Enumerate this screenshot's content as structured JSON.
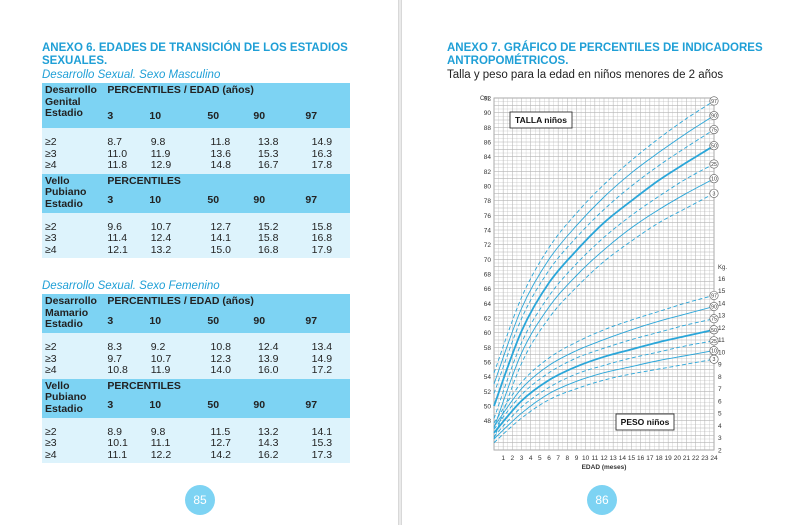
{
  "left": {
    "title": "ANEXO 6. EDADES DE TRANSICIÓN DE LOS ESTADIOS SEXUALES.",
    "subtitle_male": "Desarrollo Sexual. Sexo Masculino",
    "subtitle_female": "Desarrollo Sexual. Sexo Femenino",
    "page_number": "85",
    "male": {
      "genital": {
        "label": [
          "Desarrollo",
          "Genital",
          "Estadio"
        ],
        "header": "PERCENTILES / EDAD (años)",
        "cols": [
          "3",
          "10",
          "50",
          "90",
          "97"
        ],
        "rows": [
          {
            "stage": "≥2",
            "v": [
              "8.7",
              "9.8",
              "11.8",
              "13.8",
              "14.9"
            ]
          },
          {
            "stage": "≥3",
            "v": [
              "11.0",
              "11.9",
              "13.6",
              "15.3",
              "16.3"
            ]
          },
          {
            "stage": "≥4",
            "v": [
              "11.8",
              "12.9",
              "14.8",
              "16.7",
              "17.8"
            ]
          }
        ]
      },
      "pubic": {
        "label": [
          "Vello",
          "Pubiano",
          "Estadio"
        ],
        "header": "PERCENTILES",
        "cols": [
          "3",
          "10",
          "50",
          "90",
          "97"
        ],
        "rows": [
          {
            "stage": "≥2",
            "v": [
              "9.6",
              "10.7",
              "12.7",
              "15.2",
              "15.8"
            ]
          },
          {
            "stage": "≥3",
            "v": [
              "11.4",
              "12.4",
              "14.1",
              "15.8",
              "16.8"
            ]
          },
          {
            "stage": "≥4",
            "v": [
              "12.1",
              "13.2",
              "15.0",
              "16.8",
              "17.9"
            ]
          }
        ]
      }
    },
    "female": {
      "mammary": {
        "label": [
          "Desarrollo",
          "Mamario",
          "Estadio"
        ],
        "header": "PERCENTILES / EDAD (años)",
        "cols": [
          "3",
          "10",
          "50",
          "90",
          "97"
        ],
        "rows": [
          {
            "stage": "≥2",
            "v": [
              "8.3",
              "9.2",
              "10.8",
              "12.4",
              "13.4"
            ]
          },
          {
            "stage": "≥3",
            "v": [
              "9.7",
              "10.7",
              "12.3",
              "13.9",
              "14.9"
            ]
          },
          {
            "stage": "≥4",
            "v": [
              "10.8",
              "11.9",
              "14.0",
              "16.0",
              "17.2"
            ]
          }
        ]
      },
      "pubic": {
        "label": [
          "Vello",
          "Pubiano",
          "Estadio"
        ],
        "header": "PERCENTILES",
        "cols": [
          "3",
          "10",
          "50",
          "90",
          "97"
        ],
        "rows": [
          {
            "stage": "≥2",
            "v": [
              "8.9",
              "9.8",
              "11.5",
              "13.2",
              "14.1"
            ]
          },
          {
            "stage": "≥3",
            "v": [
              "10.1",
              "11.1",
              "12.7",
              "14.3",
              "15.3"
            ]
          },
          {
            "stage": "≥4",
            "v": [
              "11.1",
              "12.2",
              "14.2",
              "16.2",
              "17.3"
            ]
          }
        ]
      }
    }
  },
  "right": {
    "title": "ANEXO 7. GRÁFICO DE PERCENTILES DE INDICADORES ANTROPOMÉTRICOS.",
    "subtitle": "Talla  y peso para la edad en niños menores de 2 años",
    "page_number": "86"
  },
  "chart_data": {
    "type": "line",
    "xlabel": "EDAD (meses)",
    "x_ticks": [
      1,
      2,
      3,
      4,
      5,
      6,
      7,
      8,
      9,
      10,
      11,
      12,
      13,
      14,
      15,
      16,
      17,
      18,
      19,
      20,
      21,
      22,
      23,
      24
    ],
    "xlim": [
      0,
      24
    ],
    "colors": {
      "line": "#2aa6d9",
      "grid": "#b5b5b5",
      "label_bg": "#ffffff"
    },
    "height": {
      "label": "TALLA niños",
      "unit": "Cm.",
      "ylim": [
        46,
        92
      ],
      "y_ticks": [
        48,
        50,
        52,
        54,
        56,
        58,
        60,
        62,
        64,
        66,
        68,
        70,
        72,
        74,
        76,
        78,
        80,
        82,
        84,
        86,
        88,
        90,
        92
      ],
      "series": [
        {
          "percentile": "3",
          "style": "dash",
          "values": [
            [
              0,
              45.5
            ],
            [
              3,
              55.8
            ],
            [
              6,
              62.0
            ],
            [
              9,
              66.2
            ],
            [
              12,
              69.7
            ],
            [
              15,
              72.5
            ],
            [
              18,
              75.0
            ],
            [
              21,
              77.0
            ],
            [
              24,
              79.0
            ]
          ]
        },
        {
          "percentile": "10",
          "style": "solid",
          "values": [
            [
              0,
              47.0
            ],
            [
              3,
              57.2
            ],
            [
              6,
              63.5
            ],
            [
              9,
              67.8
            ],
            [
              12,
              71.3
            ],
            [
              15,
              74.3
            ],
            [
              18,
              76.8
            ],
            [
              21,
              79.0
            ],
            [
              24,
              81.0
            ]
          ]
        },
        {
          "percentile": "25",
          "style": "dash",
          "values": [
            [
              0,
              48.3
            ],
            [
              3,
              58.6
            ],
            [
              6,
              65.0
            ],
            [
              9,
              69.4
            ],
            [
              12,
              73.0
            ],
            [
              15,
              76.0
            ],
            [
              18,
              78.6
            ],
            [
              21,
              81.0
            ],
            [
              24,
              83.0
            ]
          ]
        },
        {
          "percentile": "50",
          "style": "bold",
          "values": [
            [
              0,
              50.0
            ],
            [
              3,
              60.2
            ],
            [
              6,
              66.8
            ],
            [
              9,
              71.2
            ],
            [
              12,
              75.0
            ],
            [
              15,
              78.0
            ],
            [
              18,
              80.8
            ],
            [
              21,
              83.2
            ],
            [
              24,
              85.5
            ]
          ]
        },
        {
          "percentile": "75",
          "style": "dash",
          "values": [
            [
              0,
              51.7
            ],
            [
              3,
              61.9
            ],
            [
              6,
              68.5
            ],
            [
              9,
              73.0
            ],
            [
              12,
              76.8
            ],
            [
              15,
              80.0
            ],
            [
              18,
              82.8
            ],
            [
              21,
              85.3
            ],
            [
              24,
              87.7
            ]
          ]
        },
        {
          "percentile": "90",
          "style": "solid",
          "values": [
            [
              0,
              53.0
            ],
            [
              3,
              63.3
            ],
            [
              6,
              70.0
            ],
            [
              9,
              74.6
            ],
            [
              12,
              78.5
            ],
            [
              15,
              81.8
            ],
            [
              18,
              84.6
            ],
            [
              21,
              87.2
            ],
            [
              24,
              89.6
            ]
          ]
        },
        {
          "percentile": "97",
          "style": "dash",
          "values": [
            [
              0,
              54.5
            ],
            [
              3,
              64.8
            ],
            [
              6,
              71.6
            ],
            [
              9,
              76.3
            ],
            [
              12,
              80.2
            ],
            [
              15,
              83.5
            ],
            [
              18,
              86.5
            ],
            [
              21,
              89.2
            ],
            [
              24,
              91.6
            ]
          ]
        }
      ]
    },
    "weight": {
      "label": "PESO niños",
      "unit": "Kg.",
      "ylim": [
        2,
        17
      ],
      "y_ticks": [
        2,
        3,
        4,
        5,
        6,
        7,
        8,
        9,
        10,
        11,
        12,
        13,
        14,
        15,
        16
      ],
      "series": [
        {
          "percentile": "3",
          "style": "dash",
          "values": [
            [
              0,
              2.6
            ],
            [
              3,
              4.6
            ],
            [
              6,
              6.1
            ],
            [
              9,
              7.0
            ],
            [
              12,
              7.7
            ],
            [
              15,
              8.2
            ],
            [
              18,
              8.6
            ],
            [
              21,
              9.0
            ],
            [
              24,
              9.4
            ]
          ]
        },
        {
          "percentile": "10",
          "style": "solid",
          "values": [
            [
              0,
              2.9
            ],
            [
              3,
              5.0
            ],
            [
              6,
              6.6
            ],
            [
              9,
              7.6
            ],
            [
              12,
              8.3
            ],
            [
              15,
              8.8
            ],
            [
              18,
              9.3
            ],
            [
              21,
              9.7
            ],
            [
              24,
              10.1
            ]
          ]
        },
        {
          "percentile": "25",
          "style": "dash",
          "values": [
            [
              0,
              3.1
            ],
            [
              3,
              5.5
            ],
            [
              6,
              7.1
            ],
            [
              9,
              8.2
            ],
            [
              12,
              8.9
            ],
            [
              15,
              9.5
            ],
            [
              18,
              10.0
            ],
            [
              21,
              10.5
            ],
            [
              24,
              10.9
            ]
          ]
        },
        {
          "percentile": "50",
          "style": "bold",
          "values": [
            [
              0,
              3.4
            ],
            [
              3,
              6.0
            ],
            [
              6,
              7.7
            ],
            [
              9,
              8.8
            ],
            [
              12,
              9.6
            ],
            [
              15,
              10.2
            ],
            [
              18,
              10.8
            ],
            [
              21,
              11.3
            ],
            [
              24,
              11.8
            ]
          ]
        },
        {
          "percentile": "75",
          "style": "dash",
          "values": [
            [
              0,
              3.7
            ],
            [
              3,
              6.5
            ],
            [
              6,
              8.3
            ],
            [
              9,
              9.5
            ],
            [
              12,
              10.3
            ],
            [
              15,
              11.0
            ],
            [
              18,
              11.6
            ],
            [
              21,
              12.2
            ],
            [
              24,
              12.7
            ]
          ]
        },
        {
          "percentile": "90",
          "style": "solid",
          "values": [
            [
              0,
              3.9
            ],
            [
              3,
              7.0
            ],
            [
              6,
              8.9
            ],
            [
              9,
              10.1
            ],
            [
              12,
              11.0
            ],
            [
              15,
              11.8
            ],
            [
              18,
              12.5
            ],
            [
              21,
              13.1
            ],
            [
              24,
              13.7
            ]
          ]
        },
        {
          "percentile": "97",
          "style": "dash",
          "values": [
            [
              0,
              4.2
            ],
            [
              3,
              7.5
            ],
            [
              6,
              9.5
            ],
            [
              9,
              10.8
            ],
            [
              12,
              11.8
            ],
            [
              15,
              12.6
            ],
            [
              18,
              13.3
            ],
            [
              21,
              14.0
            ],
            [
              24,
              14.6
            ]
          ]
        }
      ]
    }
  }
}
